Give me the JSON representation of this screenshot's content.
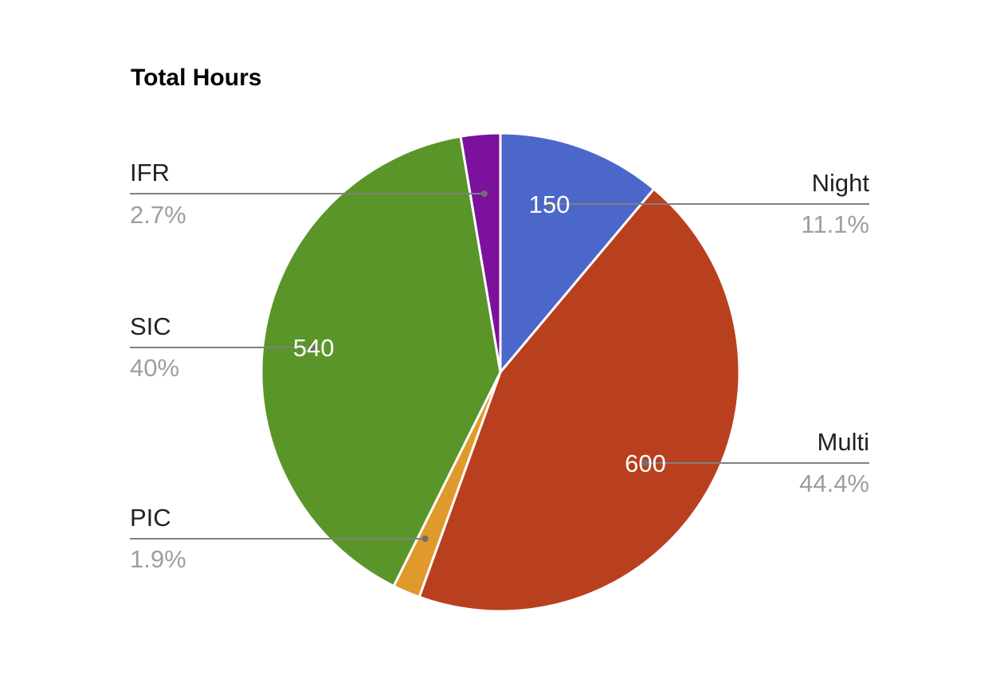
{
  "chart_data": {
    "type": "pie",
    "title": "Total Hours",
    "slices": [
      {
        "label": "Night",
        "value": 150,
        "percent_label": "11.1%",
        "value_label": "150",
        "color": "#4b67c9"
      },
      {
        "label": "Multi",
        "value": 600,
        "percent_label": "44.4%",
        "value_label": "600",
        "color": "#b8401f"
      },
      {
        "label": "PIC",
        "value": 25,
        "percent_label": "1.9%",
        "value_label": "",
        "color": "#e09a2c"
      },
      {
        "label": "SIC",
        "value": 540,
        "percent_label": "40%",
        "value_label": "540",
        "color": "#5a952a"
      },
      {
        "label": "IFR",
        "value": 36,
        "percent_label": "2.7%",
        "value_label": "",
        "color": "#7c129b"
      }
    ],
    "legend": "labeled"
  }
}
